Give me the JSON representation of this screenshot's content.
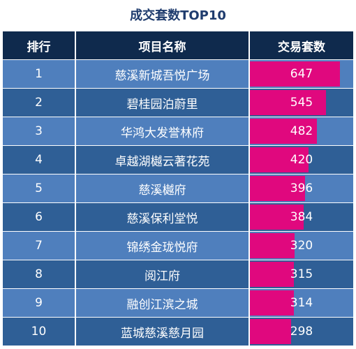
{
  "title": "成交套数TOP10",
  "headers": {
    "rank": "排行",
    "name": "项目名称",
    "value": "交易套数"
  },
  "colors": {
    "header_bg": "#0f2a4d",
    "row_light": "#4f7fbd",
    "row_dark": "#2f5f96",
    "bar": "#e0087e"
  },
  "chart_data": {
    "type": "table",
    "title": "成交套数TOP10",
    "columns": [
      "排行",
      "项目名称",
      "交易套数"
    ],
    "rows": [
      {
        "rank": "1",
        "name": "慈溪新城吾悦广场",
        "value": 647
      },
      {
        "rank": "2",
        "name": "碧桂园泊蔚里",
        "value": 545
      },
      {
        "rank": "3",
        "name": "华鸿大发誉林府",
        "value": 482
      },
      {
        "rank": "4",
        "name": "卓越湖樾云著花苑",
        "value": 420
      },
      {
        "rank": "5",
        "name": "慈溪樾府",
        "value": 396
      },
      {
        "rank": "6",
        "name": "慈溪保利堂悦",
        "value": 384
      },
      {
        "rank": "7",
        "name": "锦绣金珑悦府",
        "value": 320
      },
      {
        "rank": "8",
        "name": "阅江府",
        "value": 315
      },
      {
        "rank": "9",
        "name": "融创江滨之城",
        "value": 314
      },
      {
        "rank": "10",
        "name": "蓝城慈溪慈月园",
        "value": 298
      }
    ]
  }
}
